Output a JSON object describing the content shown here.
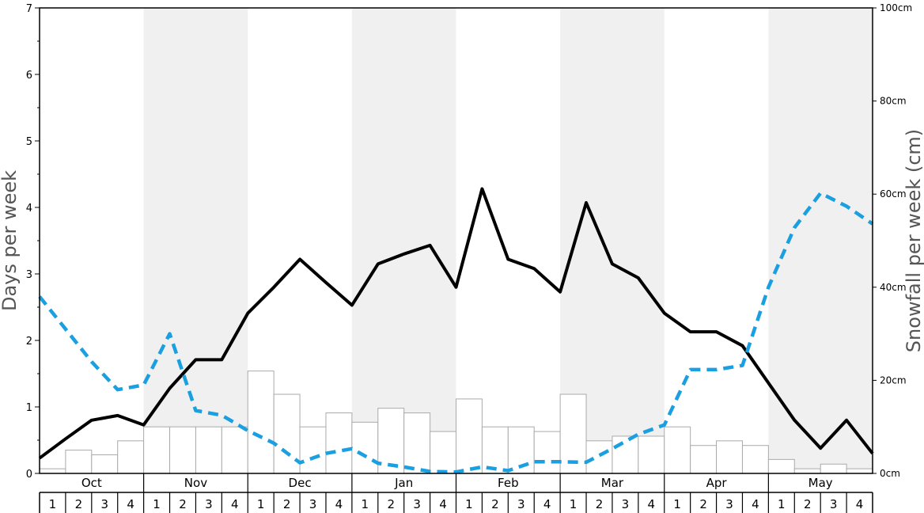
{
  "chart_data": {
    "type": "bar",
    "months": [
      "Oct",
      "Nov",
      "Dec",
      "Jan",
      "Feb",
      "Mar",
      "Apr",
      "May"
    ],
    "week_labels": [
      "1",
      "2",
      "3",
      "4"
    ],
    "ylabel_left": "Days per week",
    "ylabel_right": "Snowfall per week (cm)",
    "ylim_left": [
      0,
      7
    ],
    "ylim_right": [
      0,
      100
    ],
    "left_ticks": [
      0,
      1,
      2,
      3,
      4,
      5,
      6,
      7
    ],
    "right_ticks": [
      0,
      20,
      40,
      60,
      80,
      100
    ],
    "right_tick_unit": "cm",
    "shaded_months": [
      "Nov",
      "Jan",
      "Mar",
      "May"
    ],
    "colors": {
      "shade": "#f0f0f0",
      "bar_fill": "#ffffff",
      "bar_stroke": "#aaaaaa",
      "days_line": "#000000",
      "snow_line": "#1a9fe0"
    },
    "series": [
      {
        "kind": "bar",
        "axis": "right",
        "values": [
          1,
          5,
          4,
          7,
          10,
          10,
          10,
          10,
          22,
          17,
          10,
          13,
          11,
          14,
          13,
          9,
          16,
          10,
          10,
          9,
          17,
          7,
          8,
          8,
          10,
          6,
          7,
          6,
          3,
          1,
          2,
          1
        ]
      },
      {
        "kind": "line",
        "axis": "left",
        "style": "solid",
        "values": [
          0.23,
          0.52,
          0.8,
          0.87,
          0.73,
          1.28,
          1.71,
          1.71,
          2.41,
          2.8,
          3.22,
          2.87,
          2.53,
          3.15,
          3.3,
          3.43,
          2.8,
          4.28,
          3.22,
          3.08,
          2.73,
          4.07,
          3.15,
          2.94,
          2.41,
          2.13,
          2.13,
          1.92,
          1.36,
          0.8,
          0.38,
          0.8,
          0.3
        ]
      },
      {
        "kind": "line",
        "axis": "right",
        "style": "dashed",
        "values": [
          38,
          31,
          24,
          18,
          19,
          30,
          13.5,
          12.5,
          9.2,
          6.5,
          2.3,
          4.3,
          5.3,
          2.2,
          1.4,
          0.4,
          0.3,
          1.4,
          0.6,
          2.5,
          2.5,
          2.4,
          5.3,
          8.4,
          10.4,
          22.3,
          22.3,
          23.2,
          40,
          52.8,
          60.2,
          57.4,
          53.6
        ]
      }
    ]
  }
}
